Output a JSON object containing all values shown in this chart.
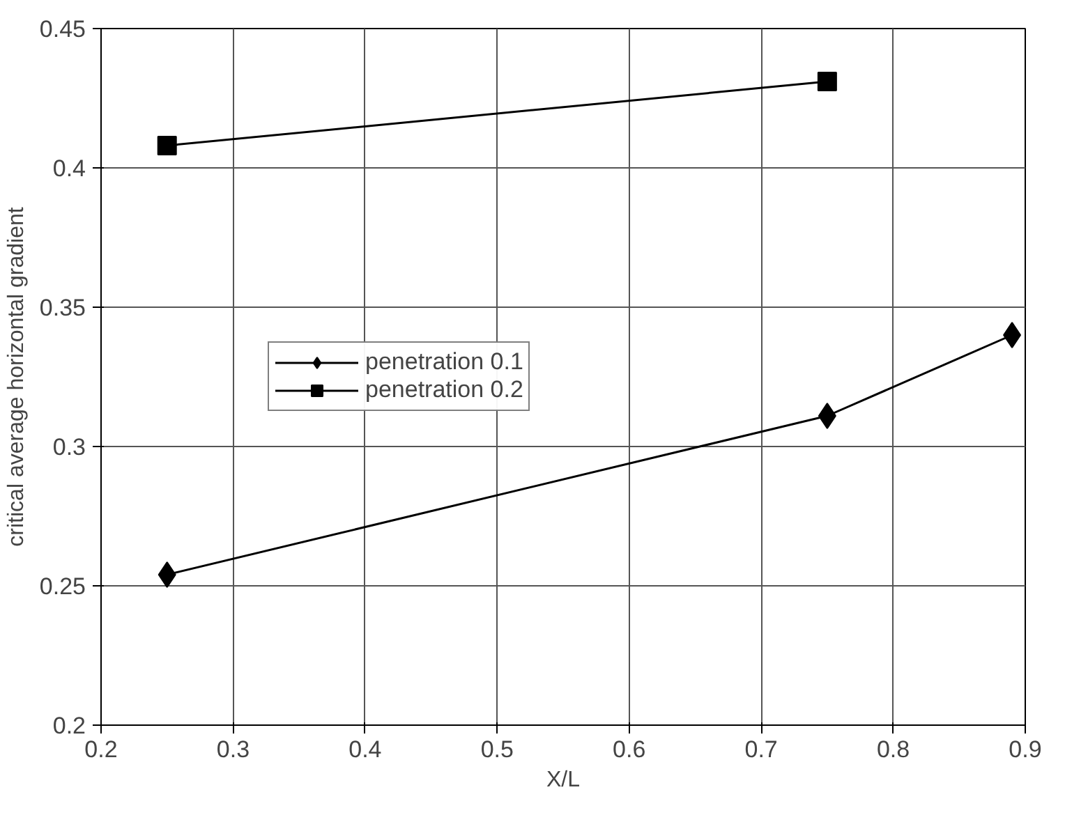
{
  "chart_data": {
    "type": "line",
    "xlabel": "X/L",
    "ylabel": "critical average horizontal gradient",
    "xlim": [
      0.2,
      0.9
    ],
    "xticks": [
      0.2,
      0.3,
      0.4,
      0.5,
      0.6,
      0.7,
      0.8,
      0.9
    ],
    "ylim": [
      0.2,
      0.45
    ],
    "yticks": [
      0.2,
      {
        "value": 0.25,
        "label": "0.25"
      },
      {
        "value": 0.3,
        "label": "0.3"
      },
      {
        "value": 0.35,
        "label": "0.35"
      },
      {
        "value": 0.4,
        "label": "0.4"
      },
      {
        "value": 0.45,
        "label": "0.45"
      }
    ],
    "grid": true,
    "legend": "left",
    "line_style": "solid",
    "series": [
      {
        "name": "penetration 0.1",
        "color": "#000000",
        "marker": "diamond",
        "x": [
          0.25,
          0.75,
          0.89
        ],
        "values": [
          0.254,
          0.311,
          0.34
        ]
      },
      {
        "name": "penetration 0.2",
        "color": "#000000",
        "marker": "square",
        "x": [
          0.25,
          0.75
        ],
        "values": [
          0.408,
          0.431
        ]
      }
    ]
  }
}
